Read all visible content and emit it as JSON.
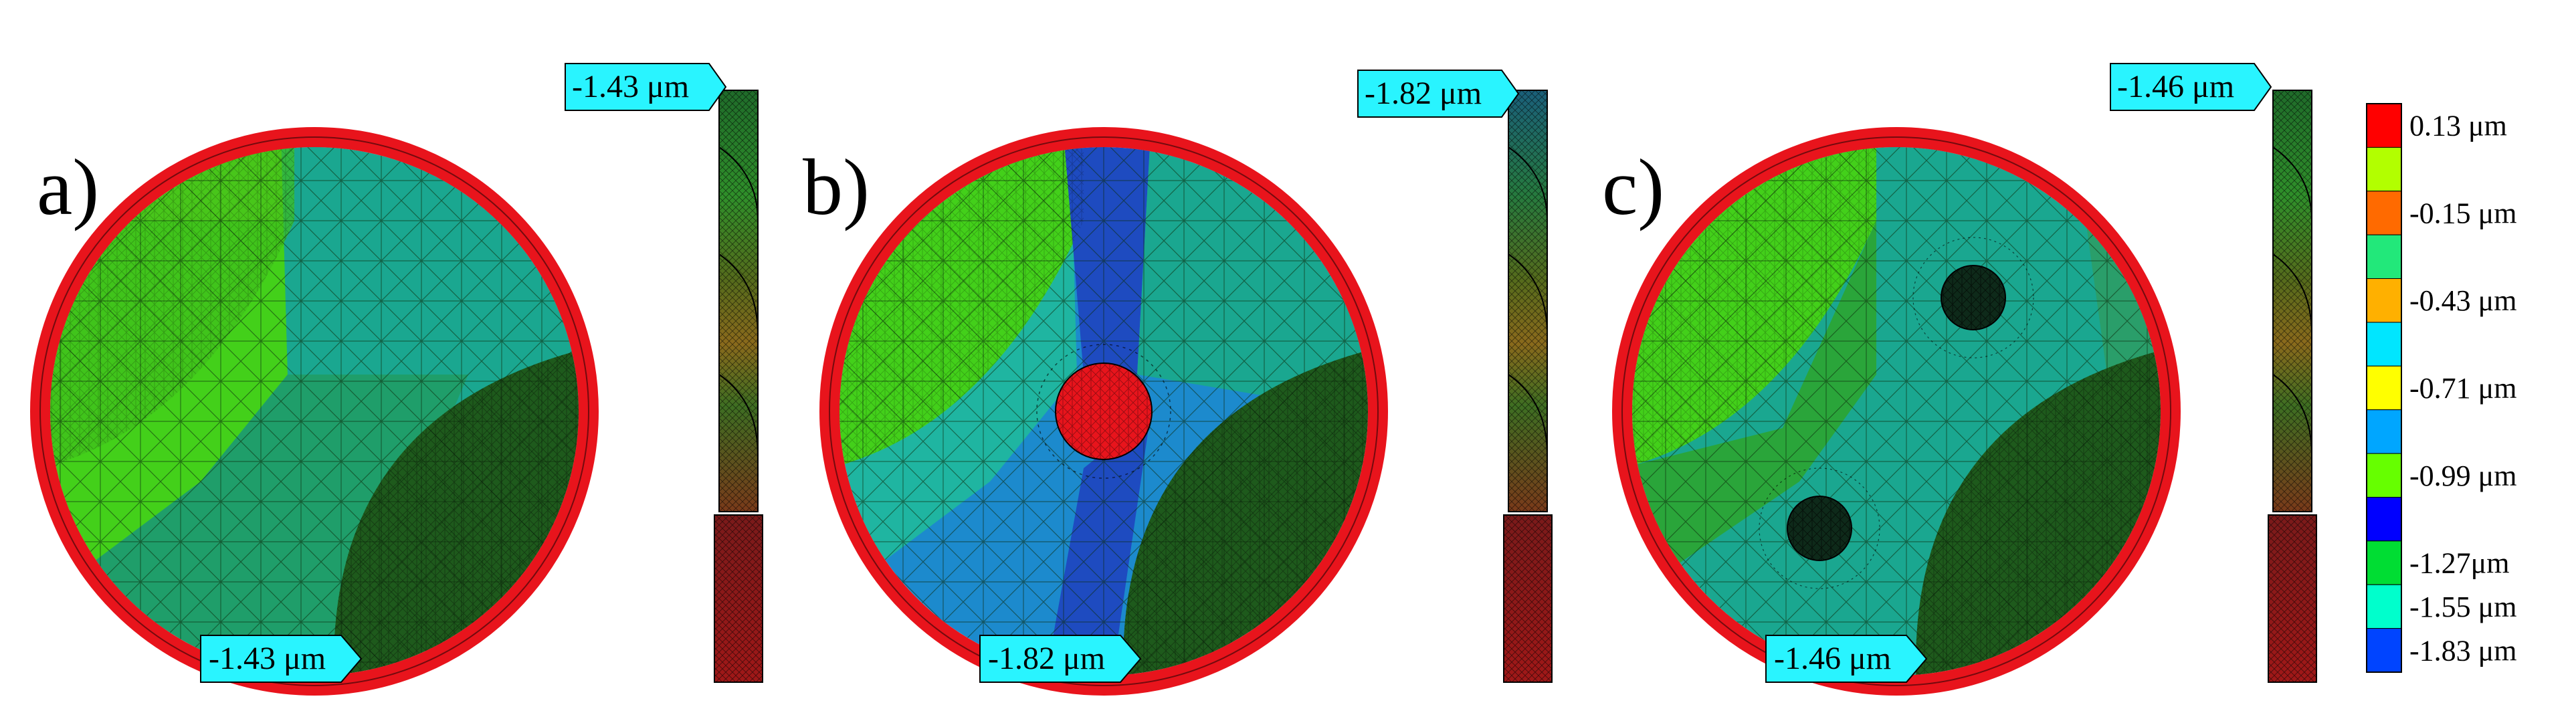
{
  "panels": [
    {
      "id": "a",
      "label": "a)",
      "circle_callout": "-1.43 μm",
      "drill_callout": "-1.43 μm",
      "holes": 0
    },
    {
      "id": "b",
      "label": "b)",
      "circle_callout": "-1.82 μm",
      "drill_callout": "-1.82 μm",
      "holes": 1
    },
    {
      "id": "c",
      "label": "c)",
      "circle_callout": "-1.46 μm",
      "drill_callout": "-1.46 μm",
      "holes": 2
    }
  ],
  "legend": {
    "entries": [
      {
        "label": "0.13 μm",
        "color": "#ff0000"
      },
      {
        "label": "-0.15 μm",
        "color": "#ff6a00"
      },
      {
        "label": "-0.43 μm",
        "color": "#ffb000"
      },
      {
        "label": "-0.71 μm",
        "color": "#ffff00"
      },
      {
        "label": "-0.99 μm",
        "color": "#66ff00"
      },
      {
        "label": "-1.27μm",
        "color": "#00dd33"
      },
      {
        "label": "-1.55 μm",
        "color": "#00ffcc"
      },
      {
        "label": "-1.83 μm",
        "color": "#0044ff"
      }
    ],
    "extra_colors": [
      "#b2ff00",
      "#22e87a",
      "#00e6ff",
      "#00a6ff",
      "#0000ff"
    ]
  },
  "colors": {
    "rim": "#e8141c",
    "callout_fill": "#29f4ff",
    "green_light": "#43d01a",
    "green_lime": "#5fd615",
    "green_mid": "#2aa53a",
    "teal": "#1aa790",
    "teal_b": "#1fb5a1",
    "blue_b": "#1c8acd",
    "blue_dark": "#1e4bc0",
    "dark_green": "#1e5a1c",
    "hole_red": "#e8141c"
  }
}
